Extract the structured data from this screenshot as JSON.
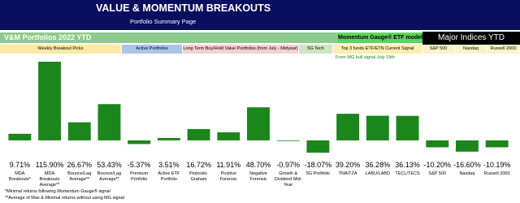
{
  "header": {
    "title": "VALUE & MOMENTUM BREAKOUTS",
    "subtitle": "Portfolio Summary Page"
  },
  "chart_data": {
    "type": "bar",
    "title": "V&M Portfolios 2022 YTD",
    "model_label": "Momentum Gauge® ETF model",
    "indices_label": "Major Indices YTD",
    "groups": [
      {
        "label": "Weekly Breakout Picks",
        "color": "#fde9a4"
      },
      {
        "label": "Active Portfolios",
        "color": "#a9c6ea"
      },
      {
        "label": "Long Term Buy/Hold Value Portfolios (from July - Midyear)",
        "color": "#f6d0d0"
      },
      {
        "label": "5G Tech",
        "color": "#cfe7c0"
      },
      {
        "label": "Top 3 funds ETF/ETN Current Signal",
        "color": "#fdeeb0"
      },
      {
        "label": "S&P 500",
        "color": "#fdf3c8"
      },
      {
        "label": "Nasdaq",
        "color": "#fdf3c8"
      },
      {
        "label": "Russell 2000",
        "color": "#fdf3c8"
      }
    ],
    "annotation": "From MG bull signal July 19th",
    "categories": [
      "MDA Breakouts*",
      "MDA Breakouts Average**",
      "Bounce/Lag Average**",
      "Bounce/Lag Average**",
      "Premium Portfolio",
      "Active ETF Portfolio",
      "Piotroski-Graham",
      "Positive Forensic",
      "Negative Forensic",
      "Growth & Dividend Mid-Year",
      "5G Portfolio",
      "TNA/TZA",
      "LABU/LABD",
      "TECL/TECS",
      "S&P 500",
      "Nasdaq",
      "Russell 2000"
    ],
    "values": [
      9.71,
      115.9,
      26.67,
      53.43,
      -5.37,
      3.51,
      16.72,
      11.91,
      48.7,
      -0.97,
      -18.07,
      39.2,
      36.28,
      36.13,
      -10.2,
      -16.6,
      -10.19
    ],
    "value_labels": [
      "9.71%",
      "115.90%",
      "26.67%",
      "53.43%",
      "-5.37%",
      "3.51%",
      "16.72%",
      "11.91%",
      "48.70%",
      "-0.97%",
      "-18.07%",
      "39.20%",
      "36.28%",
      "36.13%",
      "-10.20%",
      "-16.60%",
      "-10.19%"
    ],
    "color": "#1b861b",
    "footnotes": [
      "*Minimal returns following Momentum Gauge® signal",
      "**Average of Max & Minimal returns without using MG signal"
    ]
  }
}
